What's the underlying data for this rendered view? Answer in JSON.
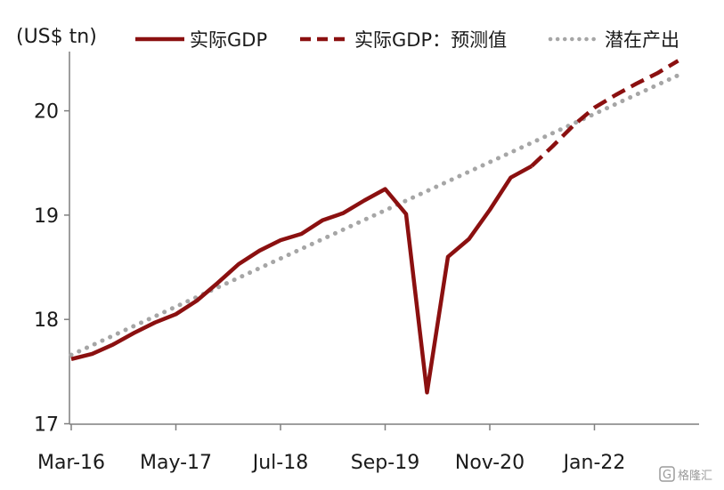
{
  "chart_data": {
    "type": "line",
    "y_unit_label": "(US$ tn)",
    "ylim": [
      17,
      20.4
    ],
    "yticks": [
      17,
      18,
      19,
      20
    ],
    "x_tick_labels": [
      "Mar-16",
      "May-17",
      "Jul-18",
      "Sep-19",
      "Nov-20",
      "Jan-22"
    ],
    "x_tick_quarters": [
      0,
      5,
      10,
      15,
      20,
      25
    ],
    "grid": false,
    "legend_position": "top",
    "series": [
      {
        "name": "实际GDP",
        "style": "solid",
        "color": "#8b1010",
        "x": [
          0,
          1,
          2,
          3,
          4,
          5,
          6,
          7,
          8,
          9,
          10,
          11,
          12,
          13,
          14,
          15,
          16,
          17,
          18,
          19,
          20,
          21,
          22
        ],
        "values": [
          17.62,
          17.67,
          17.76,
          17.87,
          17.97,
          18.05,
          18.18,
          18.35,
          18.53,
          18.66,
          18.76,
          18.82,
          18.95,
          19.02,
          19.14,
          19.25,
          19.01,
          17.3,
          18.6,
          18.77,
          19.05,
          19.36,
          19.47
        ]
      },
      {
        "name": "实际GDP：预测值",
        "style": "dashed",
        "color": "#8b1010",
        "x": [
          22,
          23,
          24,
          25,
          26,
          27,
          28,
          29
        ],
        "values": [
          19.47,
          19.66,
          19.86,
          20.03,
          20.15,
          20.26,
          20.36,
          20.48
        ]
      },
      {
        "name": "潜在产出",
        "style": "dotted",
        "color": "#a6a6a6",
        "x": [
          0,
          29
        ],
        "values": [
          17.66,
          20.34
        ]
      }
    ]
  },
  "watermark": {
    "text": "格隆汇",
    "logo_letter": "G"
  }
}
